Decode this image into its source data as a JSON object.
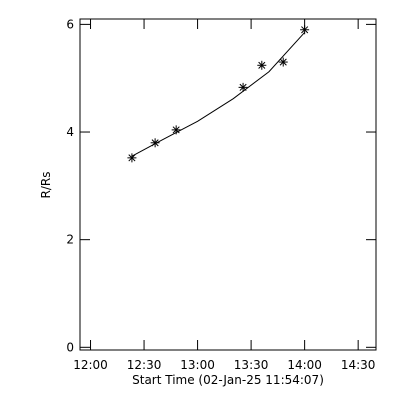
{
  "chart_data": {
    "type": "scatter",
    "x_label": "Start Time (02-Jan-25 11:54:07)",
    "y_label": "R/Rs",
    "xlim": [
      714.1,
      880
    ],
    "ylim": [
      -0.05,
      6.1
    ],
    "xticks": [
      {
        "value": 720,
        "label": "12:00"
      },
      {
        "value": 750,
        "label": "12:30"
      },
      {
        "value": 780,
        "label": "13:00"
      },
      {
        "value": 810,
        "label": "13:30"
      },
      {
        "value": 840,
        "label": "14:00"
      },
      {
        "value": 870,
        "label": "14:30"
      }
    ],
    "yticks": [
      0,
      2,
      4,
      6
    ],
    "color": "#000000",
    "series": [
      {
        "x": [
          743.2,
          756.2,
          768,
          805.5,
          816,
          828,
          840
        ],
        "values": [
          3.52,
          3.8,
          4.04,
          4.83,
          5.24,
          5.3,
          5.9
        ]
      },
      {
        "x": [
          743.2,
          760,
          780,
          800,
          820,
          840
        ],
        "values": [
          3.55,
          3.85,
          4.2,
          4.62,
          5.12,
          5.85
        ]
      }
    ]
  }
}
